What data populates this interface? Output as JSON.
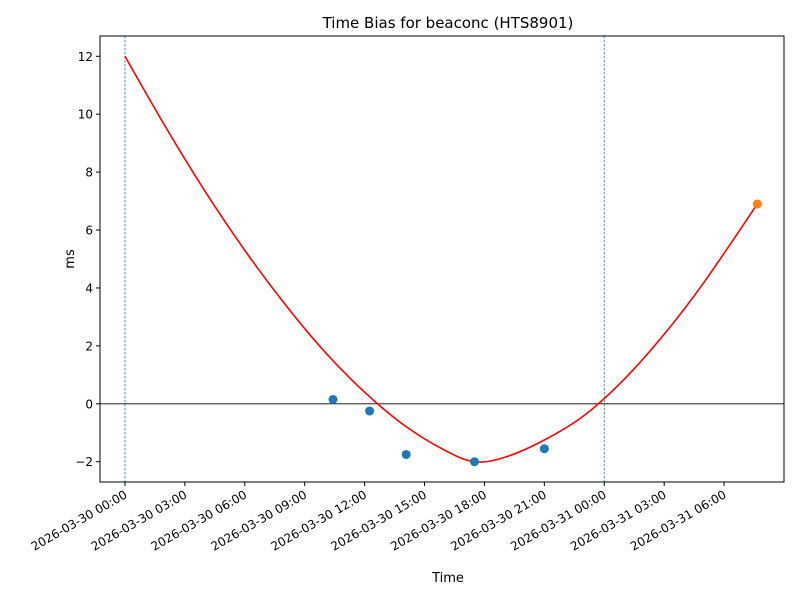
{
  "chart_data": {
    "type": "line",
    "title": "Time Bias for beaconc (HTS8901)",
    "xlabel": "Time",
    "ylabel": "ms",
    "x_range": [
      "2026-03-29 22:45",
      "2026-03-31 09:00"
    ],
    "ylim": [
      -2.7,
      12.7
    ],
    "y_ticks": [
      -2,
      0,
      2,
      4,
      6,
      8,
      10,
      12
    ],
    "x_ticks": [
      "2026-03-30 00:00",
      "2026-03-30 03:00",
      "2026-03-30 06:00",
      "2026-03-30 09:00",
      "2026-03-30 12:00",
      "2026-03-30 15:00",
      "2026-03-30 18:00",
      "2026-03-30 21:00",
      "2026-03-31 00:00",
      "2026-03-31 03:00",
      "2026-03-31 06:00"
    ],
    "grid": false,
    "fit_curve": {
      "color": "#ff0000",
      "x": [
        "2026-03-30 00:00",
        "2026-03-30 02:00",
        "2026-03-30 04:00",
        "2026-03-30 06:00",
        "2026-03-30 08:00",
        "2026-03-30 10:00",
        "2026-03-30 12:00",
        "2026-03-30 14:00",
        "2026-03-30 16:00",
        "2026-03-30 17:30",
        "2026-03-30 19:00",
        "2026-03-30 21:00",
        "2026-03-30 23:00",
        "2026-03-31 01:00",
        "2026-03-31 03:00",
        "2026-03-31 05:00",
        "2026-03-31 07:40"
      ],
      "y": [
        12.0,
        9.6,
        7.35,
        5.3,
        3.45,
        1.8,
        0.4,
        -0.75,
        -1.6,
        -2.0,
        -1.85,
        -1.25,
        -0.4,
        0.85,
        2.4,
        4.2,
        6.9
      ]
    },
    "series": [
      {
        "color": "#1f77b4",
        "x": [
          "2026-03-30 10:25",
          "2026-03-30 12:15",
          "2026-03-30 14:05",
          "2026-03-30 17:30",
          "2026-03-30 21:00"
        ],
        "y": [
          0.15,
          -0.25,
          -1.75,
          -2.0,
          -1.55
        ]
      },
      {
        "color": "#ff7f0e",
        "x": [
          "2026-03-31 07:40"
        ],
        "y": [
          6.9
        ]
      }
    ],
    "vertical_lines": {
      "color": "#1f77b4",
      "x": [
        "2026-03-30 00:00",
        "2026-03-31 00:00"
      ]
    },
    "horizontal_line": {
      "color": "#000000",
      "y": 0
    }
  }
}
